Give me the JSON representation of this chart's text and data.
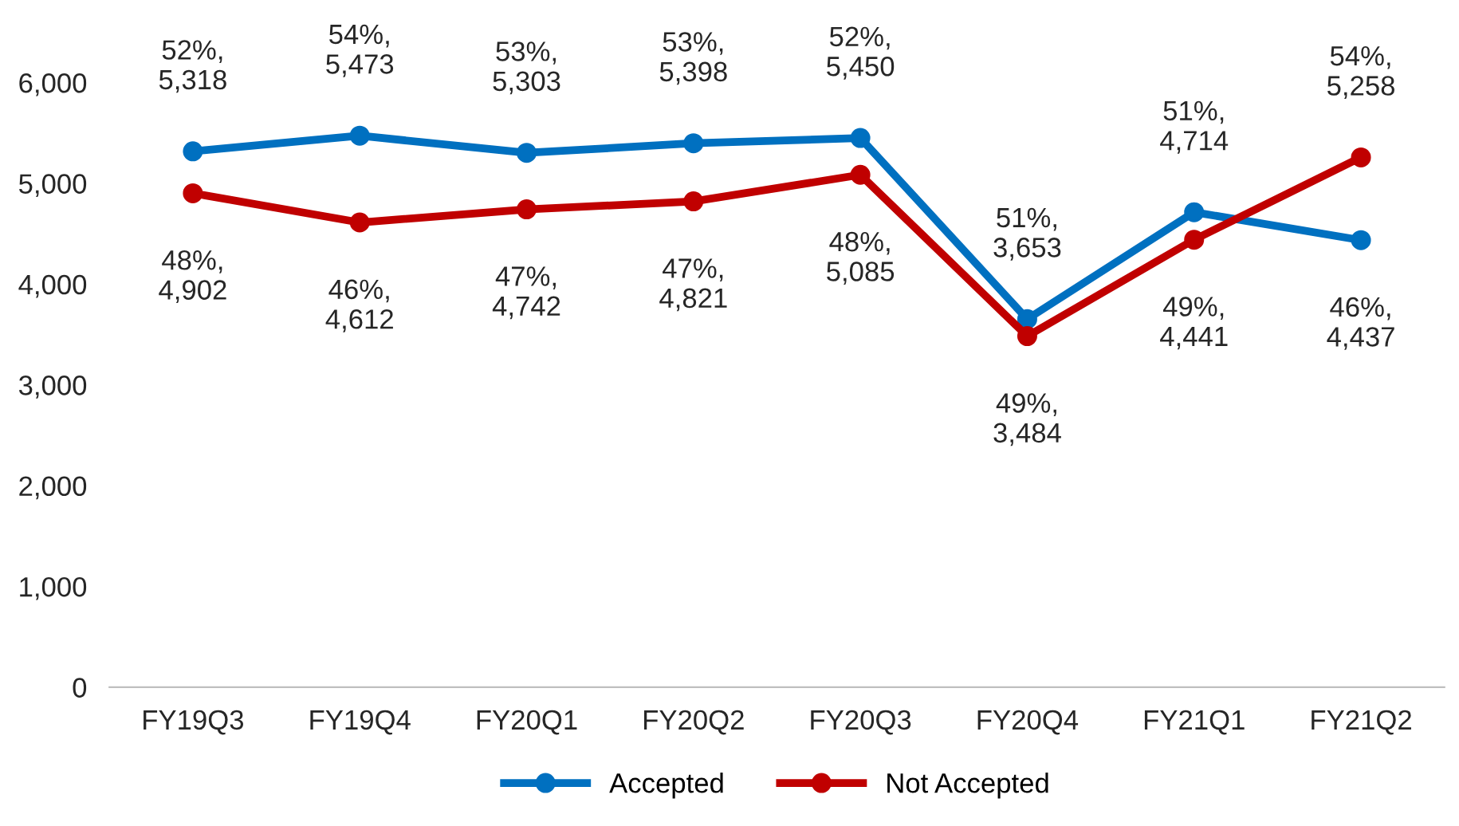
{
  "chart_data": {
    "type": "line",
    "categories": [
      "FY19Q3",
      "FY19Q4",
      "FY20Q1",
      "FY20Q2",
      "FY20Q3",
      "FY20Q4",
      "FY21Q1",
      "FY21Q2"
    ],
    "series": [
      {
        "name": "Accepted",
        "color": "#0070c0",
        "values": [
          5318,
          5473,
          5303,
          5398,
          5450,
          3653,
          4714,
          4437
        ],
        "value_labels": [
          "52%,\n5,318",
          "54%,\n5,473",
          "53%,\n5,303",
          "53%,\n5,398",
          "52%,\n5,450",
          "51%,\n3,653",
          "51%,\n4,714",
          "46%,\n4,437"
        ]
      },
      {
        "name": "Not Accepted",
        "color": "#c00000",
        "values": [
          4902,
          4612,
          4742,
          4821,
          5085,
          3484,
          4441,
          5258
        ],
        "value_labels": [
          "48%,\n4,902",
          "46%,\n4,612",
          "47%,\n4,742",
          "47%,\n4,821",
          "48%,\n5,085",
          "49%,\n3,484",
          "49%,\n4,441",
          "54%,\n5,258"
        ]
      }
    ],
    "ylim": [
      0,
      6000
    ],
    "yticks": [
      {
        "value": 0,
        "label": "0"
      },
      {
        "value": 1000,
        "label": "1,000"
      },
      {
        "value": 2000,
        "label": "2,000"
      },
      {
        "value": 3000,
        "label": "3,000"
      },
      {
        "value": 4000,
        "label": "4,000"
      },
      {
        "value": 5000,
        "label": "5,000"
      },
      {
        "value": 6000,
        "label": "6,000"
      }
    ],
    "grid": false,
    "legend": "bottom",
    "marker": "circle",
    "line_style": "solid"
  }
}
